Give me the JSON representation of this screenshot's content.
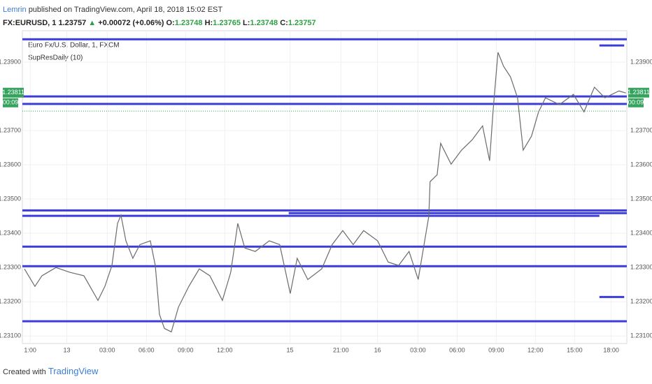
{
  "header": {
    "author": "Lemrin",
    "published": "published on TradingView.com, April 18, 2018 15:02 EST",
    "symbol": "FX:EURUSD, 1",
    "last": "1.23757",
    "arrow": "▲",
    "change": "+0.00072 (+0.06%)",
    "o_label": "O:",
    "o": "1.23748",
    "h_label": "H:",
    "h": "1.23765",
    "l_label": "L:",
    "l": "1.23748",
    "c_label": "C:",
    "c": "1.23757"
  },
  "chart_data": {
    "type": "line",
    "symbol_title": "Euro Fx/U.S. Dollar, 1, FXCM",
    "indicator": "SupResDaily (10)",
    "xlim": [
      0,
      46.3
    ],
    "ylim": [
      1.23078,
      1.23992
    ],
    "xticks": [
      {
        "value": 0.6,
        "label": "1:00"
      },
      {
        "value": 3.4,
        "label": "13"
      },
      {
        "value": 6.5,
        "label": "03:00"
      },
      {
        "value": 9.5,
        "label": "06:00"
      },
      {
        "value": 12.5,
        "label": "09:00"
      },
      {
        "value": 15.5,
        "label": "12:00"
      },
      {
        "value": 20.5,
        "label": "15"
      },
      {
        "value": 24.4,
        "label": "21:00"
      },
      {
        "value": 27.2,
        "label": "16"
      },
      {
        "value": 30.3,
        "label": "03:00"
      },
      {
        "value": 33.3,
        "label": "06:00"
      },
      {
        "value": 36.3,
        "label": "09:00"
      },
      {
        "value": 39.3,
        "label": "12:00"
      },
      {
        "value": 42.3,
        "label": "15:00"
      },
      {
        "value": 45.1,
        "label": "18:00"
      }
    ],
    "yticks": [
      {
        "value": 1.239,
        "label": "1.23900"
      },
      {
        "value": 1.237,
        "label": "1.23700"
      },
      {
        "value": 1.236,
        "label": "1.23600"
      },
      {
        "value": 1.235,
        "label": "1.23500"
      },
      {
        "value": 1.234,
        "label": "1.23400"
      },
      {
        "value": 1.233,
        "label": "1.23300"
      },
      {
        "value": 1.232,
        "label": "1.23200"
      },
      {
        "value": 1.231,
        "label": "1.23100"
      }
    ],
    "grid": true,
    "x": [
      0.16,
      0.96,
      1.5,
      2.57,
      3.64,
      4.71,
      5.79,
      6.32,
      6.86,
      7.29,
      7.55,
      7.93,
      8.46,
      9.0,
      9.8,
      10.18,
      10.5,
      10.88,
      11.41,
      11.95,
      12.75,
      13.55,
      14.36,
      15.32,
      15.96,
      16.5,
      17.04,
      17.84,
      18.91,
      19.71,
      20.52,
      21.05,
      21.86,
      22.93,
      23.73,
      24.54,
      25.34,
      26.14,
      27.21,
      28.02,
      28.82,
      29.62,
      30.32,
      30.86,
      31.13,
      31.23,
      31.77,
      32.04,
      32.84,
      33.64,
      34.45,
      35.25,
      35.79,
      36.05,
      36.43,
      36.86,
      37.39,
      37.93,
      38.36,
      39.0,
      39.54,
      40.07,
      41.14,
      42.21,
      43.02,
      43.82,
      44.62,
      45.7,
      46.23
    ],
    "series": [
      {
        "color": "#6b6b6b",
        "values": [
          1.23296,
          1.23245,
          1.23276,
          1.233,
          1.23286,
          1.23276,
          1.23204,
          1.23245,
          1.23306,
          1.23429,
          1.23453,
          1.23378,
          1.23327,
          1.23367,
          1.23378,
          1.23306,
          1.23163,
          1.23122,
          1.23112,
          1.23184,
          1.23245,
          1.23296,
          1.23276,
          1.23204,
          1.23286,
          1.23429,
          1.23357,
          1.23347,
          1.23378,
          1.23367,
          1.23224,
          1.23327,
          1.23265,
          1.23296,
          1.23367,
          1.23408,
          1.23367,
          1.23408,
          1.23378,
          1.23316,
          1.23306,
          1.23347,
          1.23265,
          1.23388,
          1.23449,
          1.23551,
          1.23571,
          1.23663,
          1.23602,
          1.23643,
          1.23673,
          1.23714,
          1.23612,
          1.23755,
          1.23929,
          1.23888,
          1.23857,
          1.23796,
          1.23643,
          1.23684,
          1.23755,
          1.23796,
          1.23776,
          1.23806,
          1.23755,
          1.23827,
          1.23796,
          1.23816,
          1.2381
        ]
      }
    ],
    "level_color": "#3c3cd8",
    "levels": [
      {
        "value": 1.23967,
        "xlim": [
          0,
          46.3
        ]
      },
      {
        "value": 1.23949,
        "xlim": [
          44.2,
          46.1
        ]
      },
      {
        "value": 1.238,
        "xlim": [
          0,
          46.3
        ]
      },
      {
        "value": 1.23778,
        "xlim": [
          0,
          46.3
        ]
      },
      {
        "value": 1.23467,
        "xlim": [
          0,
          46.3
        ]
      },
      {
        "value": 1.23459,
        "xlim": [
          20.4,
          46.3
        ]
      },
      {
        "value": 1.23451,
        "xlim": [
          0,
          44.2
        ]
      },
      {
        "value": 1.23361,
        "xlim": [
          0,
          46.3
        ]
      },
      {
        "value": 1.23304,
        "xlim": [
          0,
          46.3
        ]
      },
      {
        "value": 1.23214,
        "xlim": [
          44.2,
          46.1
        ]
      },
      {
        "value": 1.23143,
        "xlim": [
          0,
          46.3
        ]
      }
    ],
    "last_price_line": 1.23757,
    "price_label": {
      "value": 1.23811,
      "label": "1.23811"
    },
    "countdown": "00:09"
  },
  "footer": {
    "created": "Created with",
    "brand": "TradingView"
  }
}
